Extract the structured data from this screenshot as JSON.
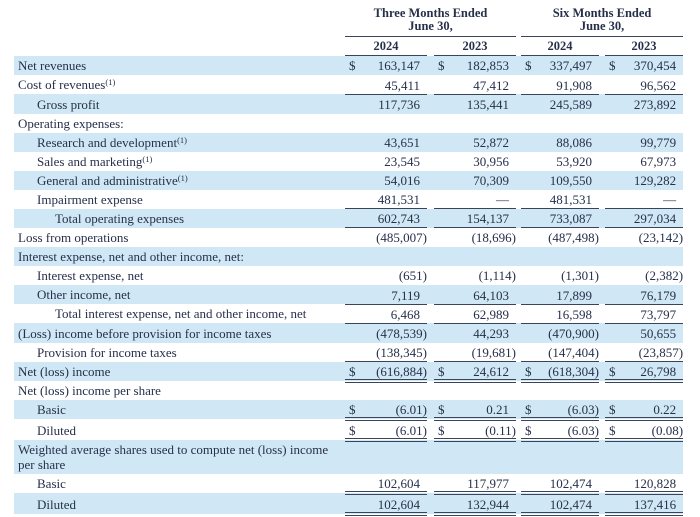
{
  "currency_symbol": "$",
  "table": {
    "col_groups": [
      {
        "title_line1": "Three Months Ended",
        "title_line2": "June 30,",
        "years": [
          "2024",
          "2023"
        ]
      },
      {
        "title_line1": "Six Months Ended",
        "title_line2": "June 30,",
        "years": [
          "2024",
          "2023"
        ]
      }
    ],
    "rows": [
      {
        "label": "Net revenues",
        "sup": null,
        "indent": 0,
        "shade": true,
        "dollar": true,
        "border": "none",
        "values": [
          "163,147",
          "182,853",
          "337,497",
          "370,454"
        ]
      },
      {
        "label": "Cost of revenues",
        "sup": "(1)",
        "indent": 0,
        "shade": false,
        "dollar": false,
        "border": "single",
        "values": [
          "45,411",
          "47,412",
          "91,908",
          "96,562"
        ]
      },
      {
        "label": "Gross profit",
        "sup": null,
        "indent": 1,
        "shade": true,
        "dollar": false,
        "border": "none",
        "values": [
          "117,736",
          "135,441",
          "245,589",
          "273,892"
        ]
      },
      {
        "label": "Operating expenses:",
        "sup": null,
        "indent": 0,
        "shade": false,
        "dollar": false,
        "border": "none",
        "values": null
      },
      {
        "label": "Research and development",
        "sup": "(1)",
        "indent": 1,
        "shade": true,
        "dollar": false,
        "border": "none",
        "values": [
          "43,651",
          "52,872",
          "88,086",
          "99,779"
        ]
      },
      {
        "label": "Sales and marketing",
        "sup": "(1)",
        "indent": 1,
        "shade": false,
        "dollar": false,
        "border": "none",
        "values": [
          "23,545",
          "30,956",
          "53,920",
          "67,973"
        ]
      },
      {
        "label": "General and administrative",
        "sup": "(1)",
        "indent": 1,
        "shade": true,
        "dollar": false,
        "border": "none",
        "values": [
          "54,016",
          "70,309",
          "109,550",
          "129,282"
        ]
      },
      {
        "label": "Impairment expense",
        "sup": null,
        "indent": 1,
        "shade": false,
        "dollar": false,
        "border": "single",
        "values": [
          "481,531",
          "—",
          "481,531",
          "—"
        ]
      },
      {
        "label": "Total operating expenses",
        "sup": null,
        "indent": 2,
        "shade": true,
        "dollar": false,
        "border": "single",
        "values": [
          "602,743",
          "154,137",
          "733,087",
          "297,034"
        ]
      },
      {
        "label": "Loss from operations",
        "sup": null,
        "indent": 0,
        "shade": false,
        "dollar": false,
        "border": "none",
        "values": [
          "(485,007)",
          "(18,696)",
          "(487,498)",
          "(23,142)"
        ]
      },
      {
        "label": "Interest expense, net and other income, net:",
        "sup": null,
        "indent": 0,
        "shade": true,
        "dollar": false,
        "border": "none",
        "values": null
      },
      {
        "label": "Interest expense, net",
        "sup": null,
        "indent": 1,
        "shade": false,
        "dollar": false,
        "border": "none",
        "values": [
          "(651)",
          "(1,114)",
          "(1,301)",
          "(2,382)"
        ]
      },
      {
        "label": "Other income, net",
        "sup": null,
        "indent": 1,
        "shade": true,
        "dollar": false,
        "border": "single",
        "values": [
          "7,119",
          "64,103",
          "17,899",
          "76,179"
        ]
      },
      {
        "label": "Total interest expense, net and other income, net",
        "sup": null,
        "indent": 2,
        "shade": false,
        "dollar": false,
        "border": "single",
        "values": [
          "6,468",
          "62,989",
          "16,598",
          "73,797"
        ]
      },
      {
        "label": "(Loss) income before provision for income taxes",
        "sup": null,
        "indent": 0,
        "shade": true,
        "dollar": false,
        "border": "none",
        "values": [
          "(478,539)",
          "44,293",
          "(470,900)",
          "50,655"
        ]
      },
      {
        "label": "Provision for income taxes",
        "sup": null,
        "indent": 1,
        "shade": false,
        "dollar": false,
        "border": "single",
        "values": [
          "(138,345)",
          "(19,681)",
          "(147,404)",
          "(23,857)"
        ]
      },
      {
        "label": "Net (loss) income",
        "sup": null,
        "indent": 0,
        "shade": true,
        "dollar": true,
        "border": "double",
        "values": [
          "(616,884)",
          "24,612",
          "(618,304)",
          "26,798"
        ]
      },
      {
        "label": "Net (loss) income per share",
        "sup": null,
        "indent": 0,
        "shade": false,
        "dollar": false,
        "border": "none",
        "values": null
      },
      {
        "label": "Basic",
        "sup": null,
        "indent": 1,
        "shade": true,
        "dollar": true,
        "border": "double",
        "values": [
          "(6.01)",
          "0.21",
          "(6.03)",
          "0.22"
        ]
      },
      {
        "label": "Diluted",
        "sup": null,
        "indent": 1,
        "shade": false,
        "dollar": true,
        "border": "double",
        "values": [
          "(6.01)",
          "(0.11)",
          "(6.03)",
          "(0.08)"
        ]
      },
      {
        "label": "Weighted average shares used to compute net (loss) income per share",
        "sup": null,
        "indent": 0,
        "shade": true,
        "dollar": false,
        "border": "none",
        "values": null
      },
      {
        "label": "Basic",
        "sup": null,
        "indent": 1,
        "shade": false,
        "dollar": false,
        "border": "double",
        "values": [
          "102,604",
          "117,977",
          "102,474",
          "120,828"
        ]
      },
      {
        "label": "Diluted",
        "sup": null,
        "indent": 1,
        "shade": true,
        "dollar": false,
        "border": "double",
        "values": [
          "102,604",
          "132,944",
          "102,474",
          "137,416"
        ]
      }
    ]
  }
}
